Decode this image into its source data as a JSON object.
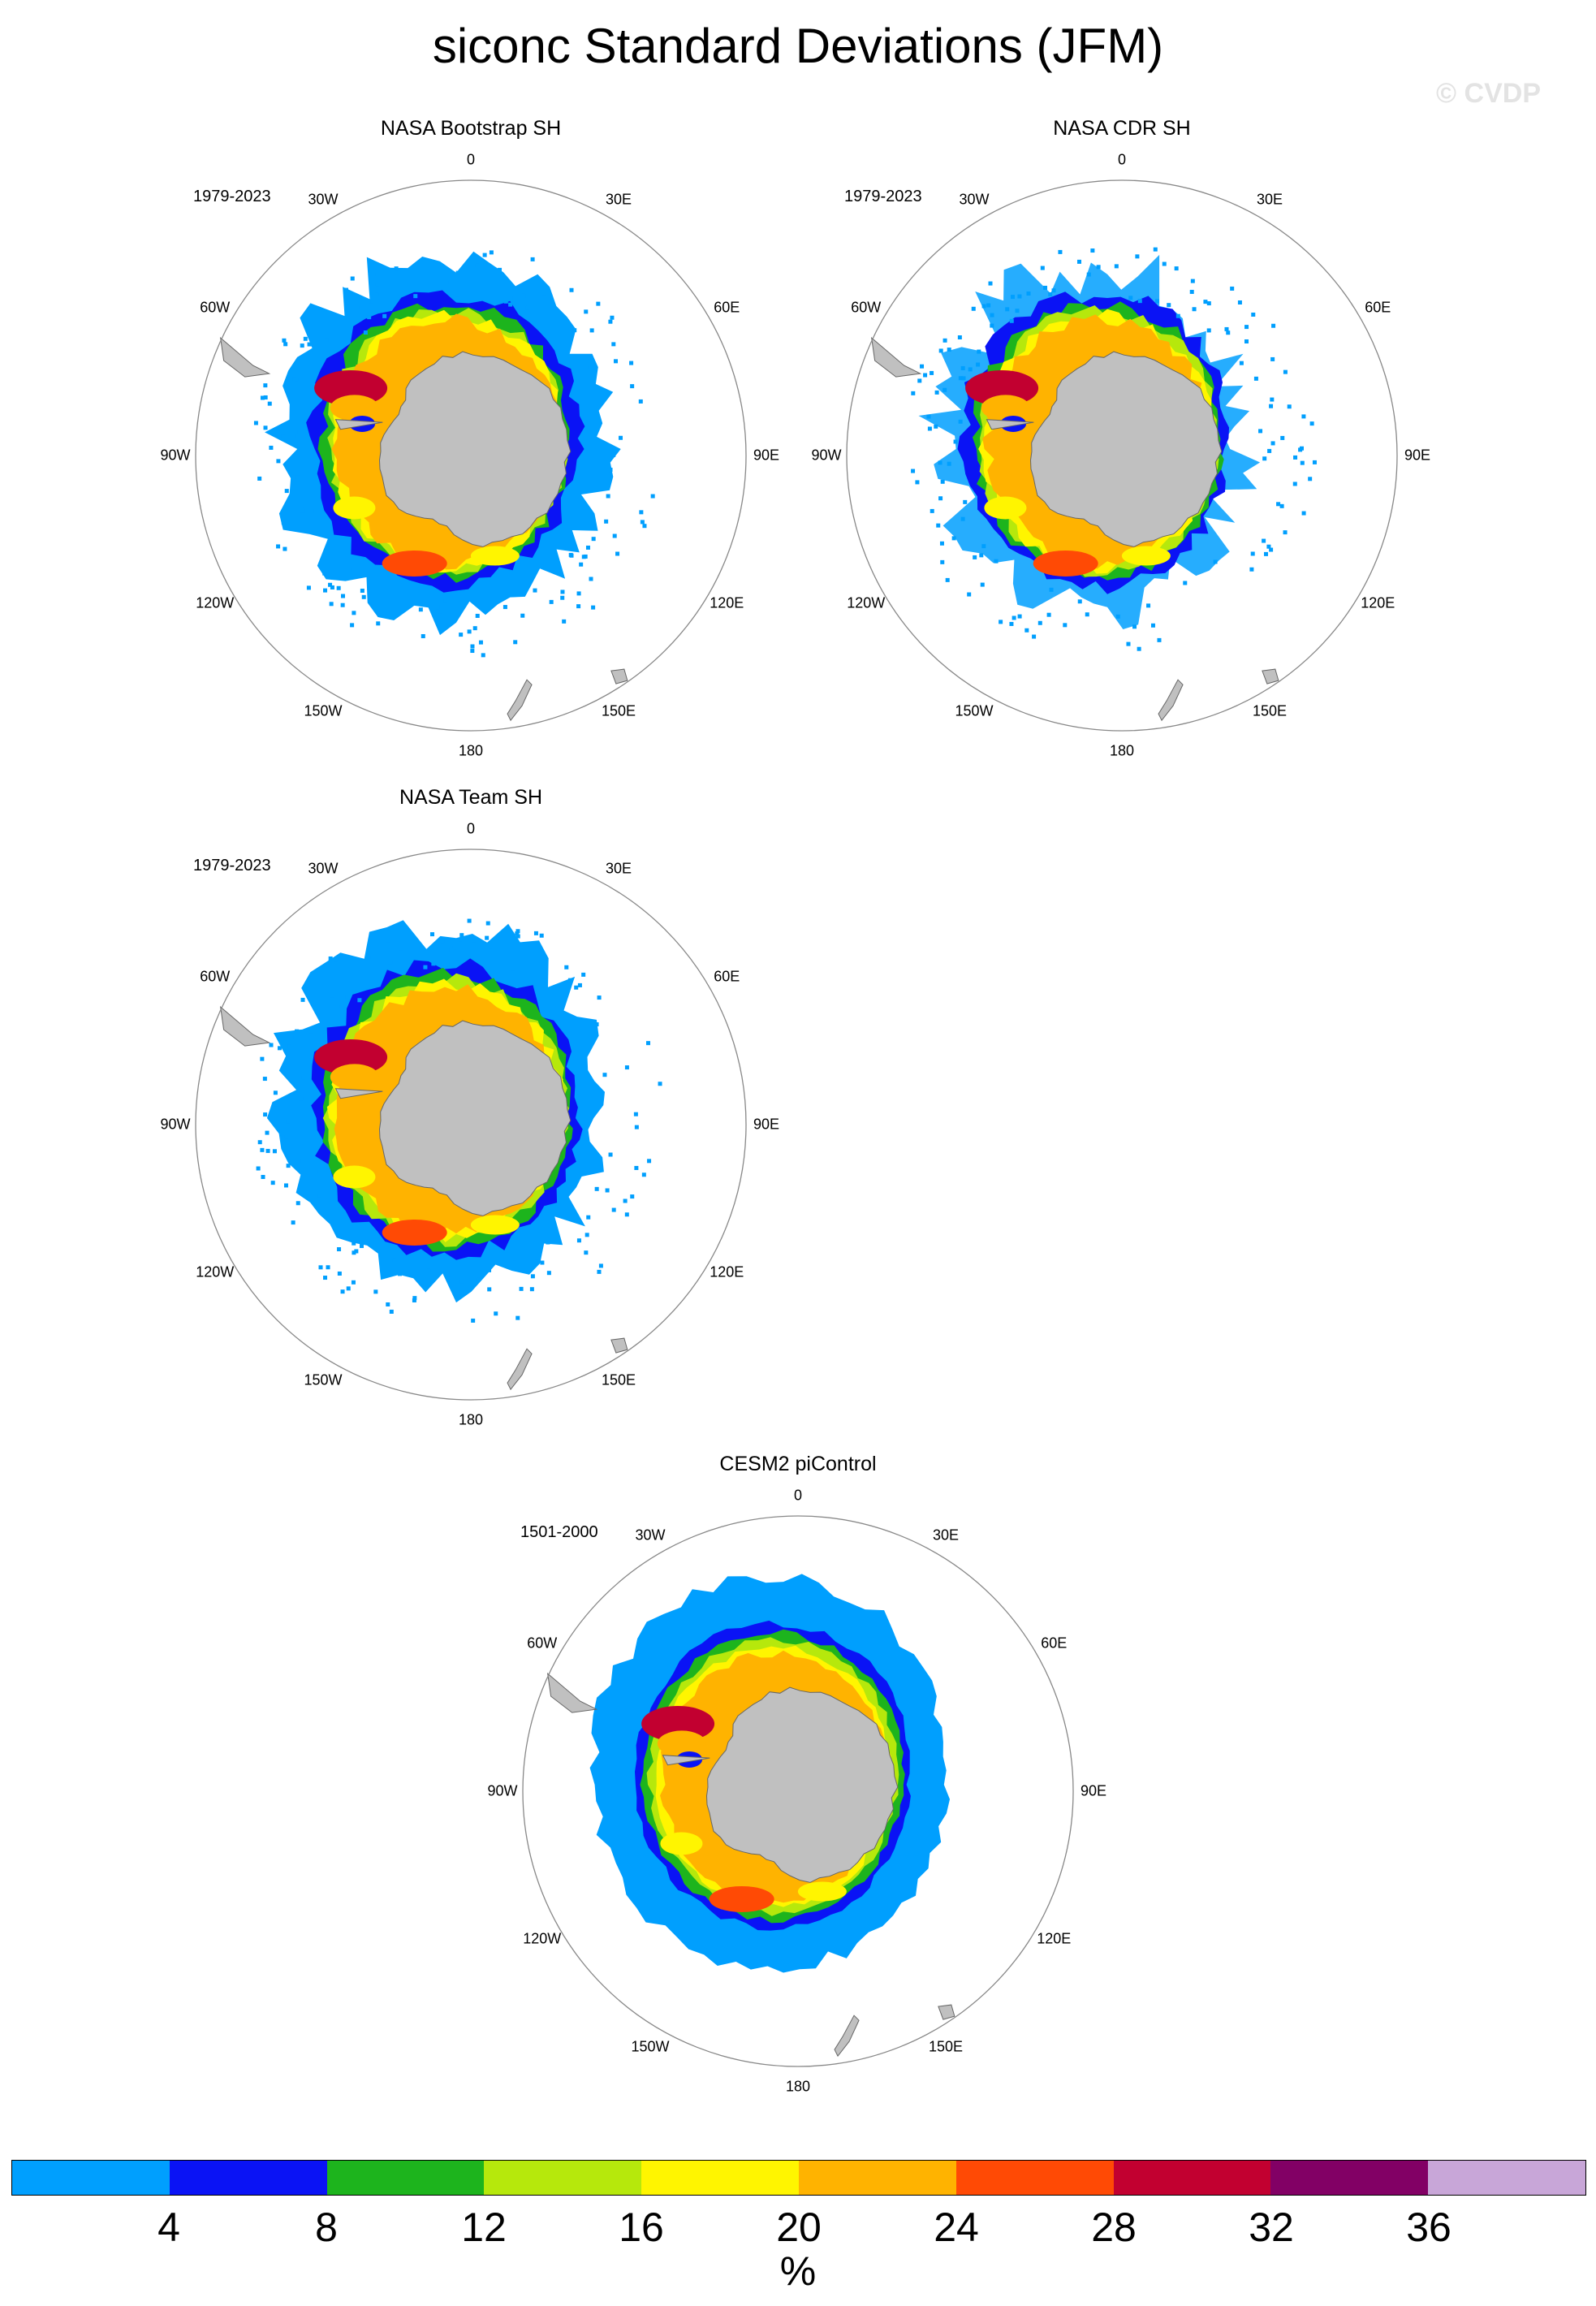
{
  "title": "siconc Standard Deviations (JFM)",
  "watermark": "© CVDP",
  "longitude_labels": [
    "0",
    "30E",
    "60E",
    "90E",
    "120E",
    "150E",
    "180",
    "150W",
    "120W",
    "90W",
    "60W",
    "30W"
  ],
  "panels": [
    {
      "id": "bootstrap",
      "title": "NASA Bootstrap SH",
      "period": "1979-2023",
      "style": "obs",
      "variant": 0
    },
    {
      "id": "cdr",
      "title": "NASA CDR SH",
      "period": "1979-2023",
      "style": "obs",
      "variant": 1
    },
    {
      "id": "team",
      "title": "NASA Team SH",
      "period": "1979-2023",
      "style": "obs",
      "variant": 2
    },
    {
      "id": "cesm2",
      "title": "CESM2 piControl",
      "period": "1501-2000",
      "style": "model",
      "variant": 3
    }
  ],
  "colorbar": {
    "unit": "%",
    "levels": [
      "4",
      "8",
      "12",
      "16",
      "20",
      "24",
      "28",
      "32",
      "36"
    ],
    "colors": [
      "#009ffe",
      "#0a13f5",
      "#1db41d",
      "#b6e80c",
      "#fff500",
      "#ffb300",
      "#ff4a05",
      "#c20030",
      "#820065",
      "#c8a6d8"
    ]
  },
  "land_color": "#c0c0c0"
}
